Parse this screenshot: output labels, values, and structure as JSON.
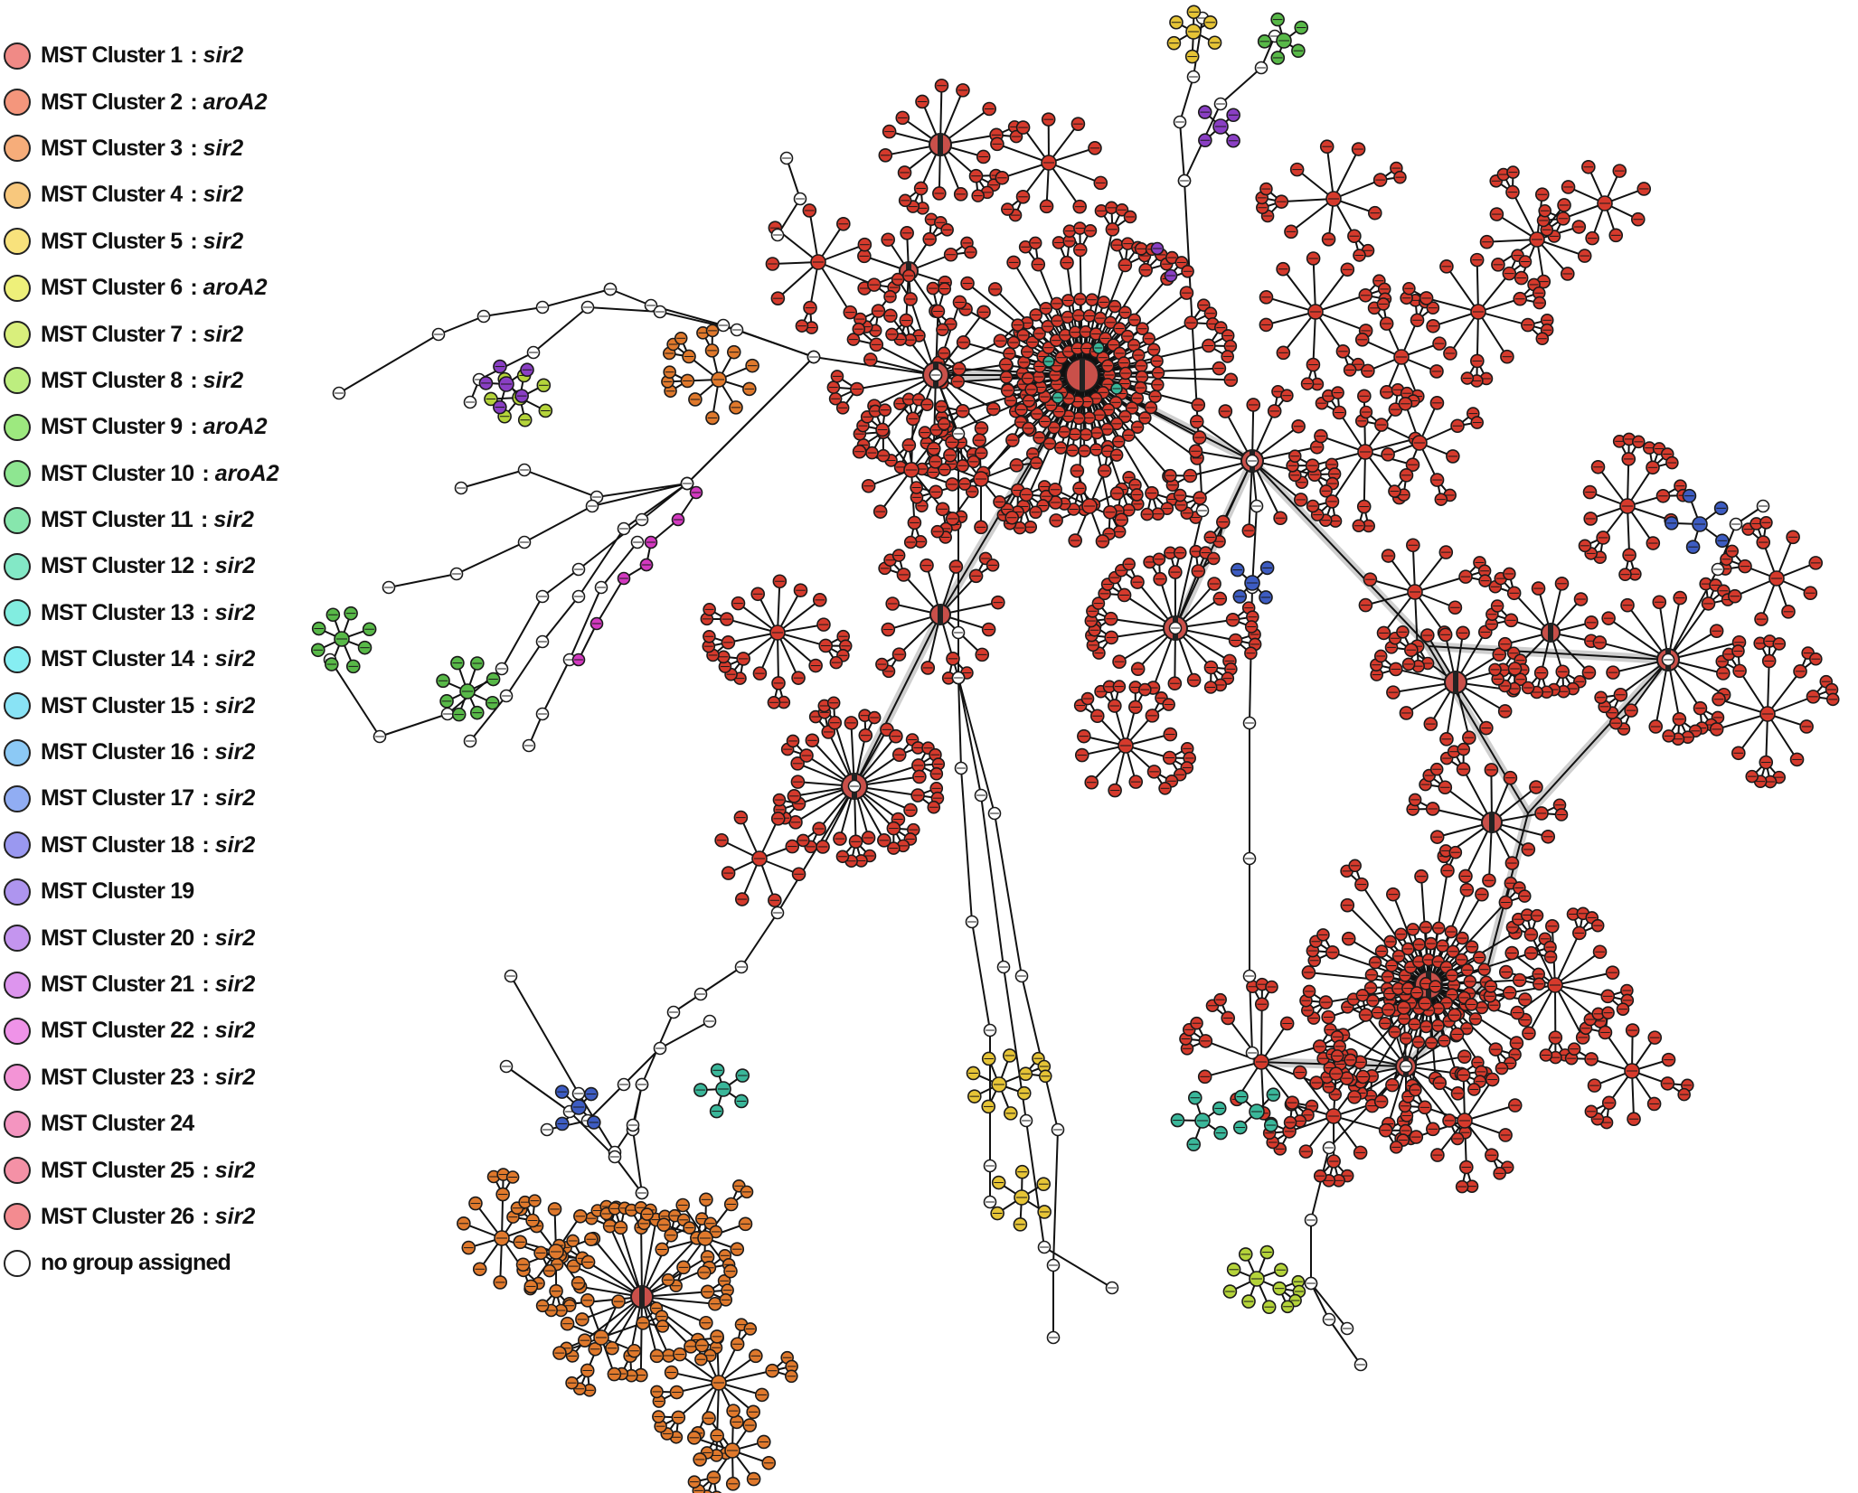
{
  "legend": [
    {
      "label": "MST Cluster 1",
      "gene": "sir2",
      "color": "#f08a86"
    },
    {
      "label": "MST Cluster 2",
      "gene": "aroA2",
      "color": "#f4967c"
    },
    {
      "label": "MST Cluster 3",
      "gene": "sir2",
      "color": "#f6ad7a"
    },
    {
      "label": "MST Cluster 4",
      "gene": "sir2",
      "color": "#f8c87d"
    },
    {
      "label": "MST Cluster 5",
      "gene": "sir2",
      "color": "#f8e27c"
    },
    {
      "label": "MST Cluster 6",
      "gene": "aroA2",
      "color": "#eef07a"
    },
    {
      "label": "MST Cluster 7",
      "gene": "sir2",
      "color": "#d9ef7c"
    },
    {
      "label": "MST Cluster 8",
      "gene": "sir2",
      "color": "#bdee7f"
    },
    {
      "label": "MST Cluster 9",
      "gene": "aroA2",
      "color": "#9de97f"
    },
    {
      "label": "MST Cluster 10",
      "gene": "aroA2",
      "color": "#8ee691"
    },
    {
      "label": "MST Cluster 11",
      "gene": "sir2",
      "color": "#87e6ad"
    },
    {
      "label": "MST Cluster 12",
      "gene": "sir2",
      "color": "#83e8c6"
    },
    {
      "label": "MST Cluster 13",
      "gene": "sir2",
      "color": "#82ede0"
    },
    {
      "label": "MST Cluster 14",
      "gene": "sir2",
      "color": "#86eef2"
    },
    {
      "label": "MST Cluster 15",
      "gene": "sir2",
      "color": "#89e3f5"
    },
    {
      "label": "MST Cluster 16",
      "gene": "sir2",
      "color": "#8cc9f5"
    },
    {
      "label": "MST Cluster 17",
      "gene": "sir2",
      "color": "#91adf3"
    },
    {
      "label": "MST Cluster 18",
      "gene": "sir2",
      "color": "#9a98f0"
    },
    {
      "label": "MST Cluster 19",
      "gene": "",
      "color": "#ae95ef"
    },
    {
      "label": "MST Cluster 20",
      "gene": "sir2",
      "color": "#c495ef"
    },
    {
      "label": "MST Cluster 21",
      "gene": "sir2",
      "color": "#dd95ee"
    },
    {
      "label": "MST Cluster 22",
      "gene": "sir2",
      "color": "#ef93e8"
    },
    {
      "label": "MST Cluster 23",
      "gene": "sir2",
      "color": "#f394d6"
    },
    {
      "label": "MST Cluster 24",
      "gene": "",
      "color": "#f495c0"
    },
    {
      "label": "MST Cluster 25",
      "gene": "sir2",
      "color": "#f491a6"
    },
    {
      "label": "MST Cluster 26",
      "gene": "sir2",
      "color": "#f38b90"
    },
    {
      "label": "no group assigned",
      "gene": "",
      "color": "#ffffff"
    }
  ],
  "colors": {
    "cluster_red": "#d63a2c",
    "cluster_orange": "#e0792c",
    "cluster_yellow": "#e6c436",
    "cluster_lime": "#b5d43a",
    "cluster_green": "#58b948",
    "cluster_teal": "#3ab79a",
    "cluster_blue": "#3d5cc2",
    "cluster_purple": "#8a3fc4",
    "cluster_magenta": "#d339c0",
    "unassigned": "#ffffff",
    "edge": "#111111",
    "edge_halo": "#bbbbbb"
  }
}
